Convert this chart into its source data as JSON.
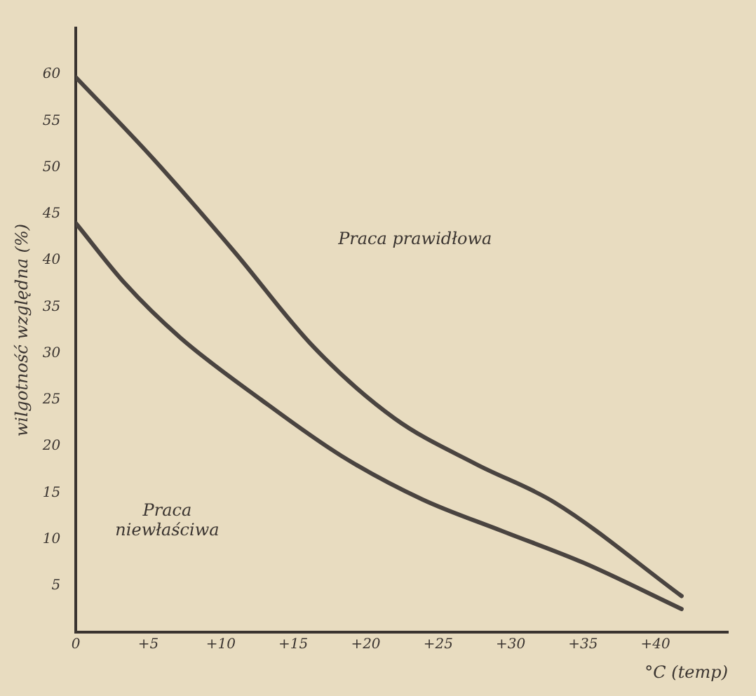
{
  "chart_data": {
    "type": "line",
    "xlabel": "°C (temp)",
    "ylabel": "wilgotność względna (%)",
    "xlim": [
      0,
      45
    ],
    "ylim": [
      0,
      65
    ],
    "xticks": [
      0,
      {
        "value": 5,
        "label": "+5"
      },
      {
        "value": 10,
        "label": "+10"
      },
      {
        "value": 15,
        "label": "+15"
      },
      {
        "value": 20,
        "label": "+20"
      },
      {
        "value": 25,
        "label": "+25"
      },
      {
        "value": 30,
        "label": "+30"
      },
      {
        "value": 35,
        "label": "+35"
      },
      {
        "value": 40,
        "label": "+40"
      }
    ],
    "yticks": [
      5,
      10,
      15,
      20,
      25,
      30,
      35,
      40,
      45,
      50,
      55,
      60
    ],
    "grid": false,
    "marker": "none",
    "line_style": "solid",
    "series": [
      {
        "color": "#4a4440",
        "x": [
          0,
          5.3,
          10.9,
          16.4,
          22,
          27.6,
          33,
          41.8
        ],
        "values": [
          59.7,
          51,
          41,
          30.7,
          23,
          18.1,
          14,
          3.9
        ]
      },
      {
        "color": "#4a4440",
        "x": [
          0,
          3.4,
          7.2,
          12.8,
          18.3,
          23.9,
          29.4,
          35,
          41.8
        ],
        "values": [
          44,
          37.5,
          31.7,
          25,
          19,
          14.3,
          10.9,
          7.5,
          2.5
        ]
      }
    ],
    "annotations": [
      "Praca prawidłowa",
      "Praca niewłaściwa"
    ]
  }
}
